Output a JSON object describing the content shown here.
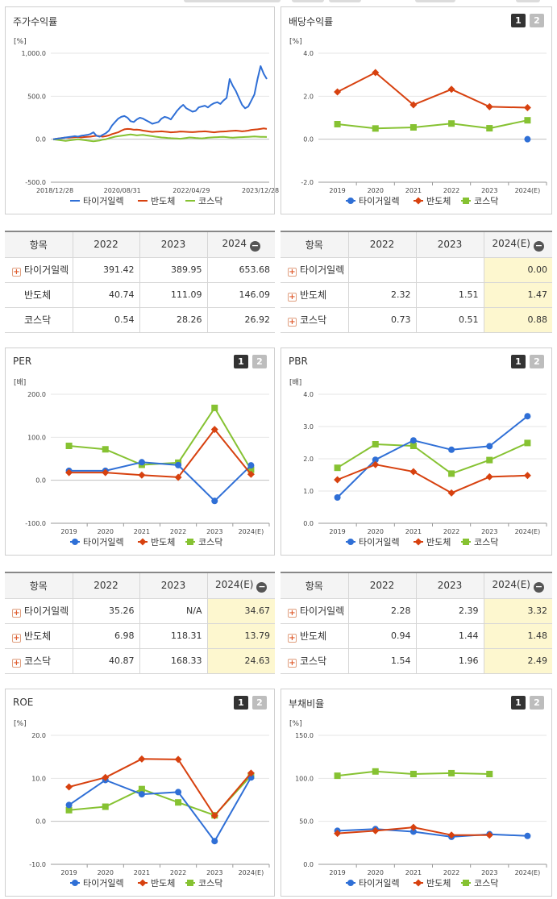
{
  "top_strip": [
    {
      "l": 228,
      "w": 120
    },
    {
      "l": 362,
      "w": 40
    },
    {
      "l": 408,
      "w": 40
    },
    {
      "l": 515,
      "w": 50
    },
    {
      "l": 640,
      "w": 30
    }
  ],
  "colors": {
    "tiger": "#2f6fd6",
    "semi": "#d7410f",
    "kosdaq": "#86c232"
  },
  "chart_data": [
    {
      "id": "stock-return",
      "title": "주가수익률",
      "type": "line",
      "unit": "[%]",
      "ylim": [
        -500,
        1000
      ],
      "yticks": [
        -500,
        0,
        500,
        1000
      ],
      "ytick_labels": [
        "-500.0",
        "0.0",
        "500.0",
        "1,000.0"
      ],
      "xtick_labels": [
        "2018/12/28",
        "2020/08/31",
        "2022/04/29",
        "2023/12/28"
      ],
      "x_dense": true,
      "series": [
        {
          "name": "타이거일렉",
          "key": "tiger",
          "values": [
            0,
            5,
            10,
            15,
            20,
            25,
            30,
            35,
            30,
            40,
            45,
            50,
            60,
            80,
            40,
            30,
            50,
            70,
            100,
            160,
            200,
            240,
            260,
            270,
            250,
            210,
            200,
            230,
            250,
            240,
            220,
            200,
            180,
            190,
            200,
            240,
            260,
            250,
            230,
            280,
            330,
            370,
            400,
            360,
            340,
            320,
            330,
            370,
            380,
            390,
            370,
            400,
            420,
            430,
            410,
            450,
            480,
            700,
            620,
            560,
            480,
            400,
            360,
            380,
            450,
            520,
            700,
            850,
            760,
            700
          ]
        },
        {
          "name": "반도체",
          "key": "semi",
          "values": [
            0,
            5,
            10,
            15,
            20,
            18,
            20,
            22,
            25,
            20,
            25,
            28,
            30,
            35,
            40,
            35,
            30,
            35,
            45,
            60,
            70,
            80,
            100,
            115,
            120,
            118,
            110,
            112,
            108,
            100,
            95,
            90,
            85,
            88,
            90,
            92,
            88,
            85,
            80,
            82,
            85,
            90,
            88,
            86,
            84,
            82,
            85,
            88,
            90,
            92,
            88,
            84,
            80,
            85,
            88,
            90,
            92,
            95,
            98,
            100,
            96,
            92,
            95,
            100,
            108,
            112,
            115,
            120,
            125,
            120
          ]
        },
        {
          "name": "코스닥",
          "key": "kosdaq",
          "values": [
            0,
            -5,
            -10,
            -15,
            -20,
            -15,
            -10,
            -5,
            0,
            -5,
            -10,
            -15,
            -20,
            -25,
            -20,
            -15,
            -5,
            0,
            10,
            20,
            30,
            35,
            40,
            45,
            50,
            55,
            50,
            45,
            48,
            50,
            45,
            40,
            35,
            30,
            25,
            20,
            18,
            15,
            12,
            10,
            8,
            5,
            10,
            15,
            20,
            18,
            15,
            12,
            10,
            14,
            18,
            20,
            22,
            24,
            26,
            28,
            24,
            20,
            18,
            20,
            22,
            24,
            26,
            28,
            30,
            32,
            30,
            28,
            27,
            26
          ]
        }
      ],
      "legend": [
        "타이거일렉",
        "반도체",
        "코스닥"
      ]
    },
    {
      "id": "dividend-yield",
      "title": "배당수익률",
      "type": "line",
      "unit": "[%]",
      "ylim": [
        -2,
        4
      ],
      "yticks": [
        -2,
        0,
        2,
        4
      ],
      "ytick_labels": [
        "-2.0",
        "0.0",
        "2.0",
        "4.0"
      ],
      "categories": [
        "2019",
        "2020",
        "2021",
        "2022",
        "2023",
        "2024(E)"
      ],
      "series": [
        {
          "name": "타이거일렉",
          "key": "tiger",
          "values": [
            null,
            null,
            null,
            null,
            null,
            0.0
          ]
        },
        {
          "name": "반도체",
          "key": "semi",
          "values": [
            2.2,
            3.1,
            1.6,
            2.32,
            1.51,
            1.47
          ]
        },
        {
          "name": "코스닥",
          "key": "kosdaq",
          "values": [
            0.7,
            0.5,
            0.55,
            0.73,
            0.51,
            0.88
          ]
        }
      ],
      "legend": [
        "타이거일렉",
        "반도체",
        "코스닥"
      ]
    },
    {
      "id": "per",
      "title": "PER",
      "type": "line",
      "unit": "[배]",
      "ylim": [
        -100,
        200
      ],
      "yticks": [
        -100,
        0,
        100,
        200
      ],
      "ytick_labels": [
        "-100.0",
        "0.0",
        "100.0",
        "200.0"
      ],
      "categories": [
        "2019",
        "2020",
        "2021",
        "2022",
        "2023",
        "2024(E)"
      ],
      "series": [
        {
          "name": "타이거일렉",
          "key": "tiger",
          "values": [
            22,
            22,
            42,
            35.26,
            -48,
            34.67
          ]
        },
        {
          "name": "반도체",
          "key": "semi",
          "values": [
            18,
            18,
            12,
            6.98,
            118.31,
            13.79
          ]
        },
        {
          "name": "코스닥",
          "key": "kosdaq",
          "values": [
            80,
            72,
            36,
            40.87,
            168.33,
            24.63
          ]
        }
      ],
      "legend": [
        "타이거일렉",
        "반도체",
        "코스닥"
      ]
    },
    {
      "id": "pbr",
      "title": "PBR",
      "type": "line",
      "unit": "[배]",
      "ylim": [
        0,
        4
      ],
      "yticks": [
        0,
        1,
        2,
        3,
        4
      ],
      "ytick_labels": [
        "0.0",
        "1.0",
        "2.0",
        "3.0",
        "4.0"
      ],
      "categories": [
        "2019",
        "2020",
        "2021",
        "2022",
        "2023",
        "2024(E)"
      ],
      "series": [
        {
          "name": "타이거일렉",
          "key": "tiger",
          "values": [
            0.8,
            1.97,
            2.57,
            2.28,
            2.39,
            3.32
          ]
        },
        {
          "name": "반도체",
          "key": "semi",
          "values": [
            1.35,
            1.82,
            1.6,
            0.94,
            1.44,
            1.48
          ]
        },
        {
          "name": "코스닥",
          "key": "kosdaq",
          "values": [
            1.72,
            2.45,
            2.4,
            1.54,
            1.96,
            2.49
          ]
        }
      ],
      "legend": [
        "타이거일렉",
        "반도체",
        "코스닥"
      ]
    },
    {
      "id": "roe",
      "title": "ROE",
      "type": "line",
      "unit": "[%]",
      "ylim": [
        -10,
        20
      ],
      "yticks": [
        -10,
        0,
        10,
        20
      ],
      "ytick_labels": [
        "-10.0",
        "0.0",
        "10.0",
        "20.0"
      ],
      "categories": [
        "2019",
        "2020",
        "2021",
        "2022",
        "2023",
        "2024(E)"
      ],
      "series": [
        {
          "name": "타이거일렉",
          "key": "tiger",
          "values": [
            3.8,
            9.6,
            6.3,
            6.8,
            -4.6,
            10.2
          ]
        },
        {
          "name": "반도체",
          "key": "semi",
          "values": [
            8.0,
            10.2,
            14.5,
            14.4,
            1.3,
            11.2
          ]
        },
        {
          "name": "코스닥",
          "key": "kosdaq",
          "values": [
            2.6,
            3.4,
            7.5,
            4.4,
            1.4,
            10.6
          ]
        }
      ],
      "legend": [
        "타이거일렉",
        "반도체",
        "코스닥"
      ]
    },
    {
      "id": "debt-ratio",
      "title": "부채비율",
      "type": "line",
      "unit": "[%]",
      "ylim": [
        0,
        150
      ],
      "yticks": [
        0,
        50,
        100,
        150
      ],
      "ytick_labels": [
        "0.0",
        "50.0",
        "100.0",
        "150.0"
      ],
      "categories": [
        "2019",
        "2020",
        "2021",
        "2022",
        "2023",
        "2024(E)"
      ],
      "series": [
        {
          "name": "타이거일렉",
          "key": "tiger",
          "values": [
            39,
            41,
            38,
            32,
            35,
            33
          ]
        },
        {
          "name": "반도체",
          "key": "semi",
          "values": [
            36,
            39,
            43,
            34,
            34,
            null
          ]
        },
        {
          "name": "코스닥",
          "key": "kosdaq",
          "values": [
            103,
            108,
            105,
            106,
            105,
            null
          ]
        }
      ],
      "legend": [
        "타이거일렉",
        "반도체",
        "코스닥"
      ]
    }
  ],
  "tables": [
    {
      "id": "stock-return-table",
      "header": [
        "항목",
        "2022",
        "2023",
        "2024"
      ],
      "rows": [
        {
          "label": "타이거일렉",
          "plus": true,
          "values": [
            "391.42",
            "389.95",
            "653.68"
          ]
        },
        {
          "label": "반도체",
          "plus": false,
          "values": [
            "40.74",
            "111.09",
            "146.09"
          ]
        },
        {
          "label": "코스닥",
          "plus": false,
          "values": [
            "0.54",
            "28.26",
            "26.92"
          ]
        }
      ],
      "highlight_last": false
    },
    {
      "id": "dividend-table",
      "header": [
        "항목",
        "2022",
        "2023",
        "2024(E)"
      ],
      "rows": [
        {
          "label": "타이거일렉",
          "plus": true,
          "values": [
            "",
            "",
            "0.00"
          ]
        },
        {
          "label": "반도체",
          "plus": true,
          "values": [
            "2.32",
            "1.51",
            "1.47"
          ]
        },
        {
          "label": "코스닥",
          "plus": true,
          "values": [
            "0.73",
            "0.51",
            "0.88"
          ]
        }
      ],
      "highlight_last": true
    },
    {
      "id": "per-table",
      "header": [
        "항목",
        "2022",
        "2023",
        "2024(E)"
      ],
      "rows": [
        {
          "label": "타이거일렉",
          "plus": true,
          "values": [
            "35.26",
            "N/A",
            "34.67"
          ]
        },
        {
          "label": "반도체",
          "plus": true,
          "values": [
            "6.98",
            "118.31",
            "13.79"
          ]
        },
        {
          "label": "코스닥",
          "plus": true,
          "values": [
            "40.87",
            "168.33",
            "24.63"
          ]
        }
      ],
      "highlight_last": true
    },
    {
      "id": "pbr-table",
      "header": [
        "항목",
        "2022",
        "2023",
        "2024(E)"
      ],
      "rows": [
        {
          "label": "타이거일렉",
          "plus": true,
          "values": [
            "2.28",
            "2.39",
            "3.32"
          ]
        },
        {
          "label": "반도체",
          "plus": true,
          "values": [
            "0.94",
            "1.44",
            "1.48"
          ]
        },
        {
          "label": "코스닥",
          "plus": true,
          "values": [
            "1.54",
            "1.96",
            "2.49"
          ]
        }
      ],
      "highlight_last": true
    }
  ],
  "tab_labels": [
    "1",
    "2"
  ]
}
